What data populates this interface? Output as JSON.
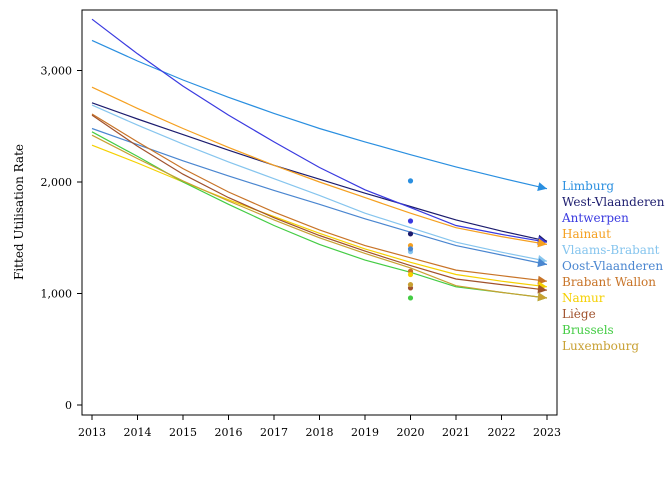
{
  "chart_data": {
    "type": "line",
    "title": "",
    "xlabel": "",
    "ylabel": "Fitted Utilisation Rate",
    "x": [
      2013,
      2014,
      2015,
      2016,
      2017,
      2018,
      2019,
      2020,
      2021,
      2022,
      2023
    ],
    "x_ticks": [
      "2013",
      "2014",
      "2015",
      "2016",
      "2017",
      "2018",
      "2019",
      "2020",
      "2021",
      "2022",
      "2023"
    ],
    "y_ticks": [
      0,
      1000,
      2000,
      3000
    ],
    "y_tick_labels": [
      "0",
      "1,000",
      "2,000",
      "3,000"
    ],
    "xlim": [
      2012.75,
      2023.25
    ],
    "ylim": [
      -100,
      3550
    ],
    "grid": false,
    "legend_placement": "right",
    "series": [
      {
        "name": "Limburg",
        "color": "#2a8fe0",
        "line_x": [
          2013,
          2014,
          2015,
          2016,
          2017,
          2018,
          2019,
          2020,
          2021,
          2022,
          2023
        ],
        "line_y": [
          3270,
          3085,
          2915,
          2760,
          2615,
          2480,
          2360,
          2245,
          2135,
          2035,
          1940
        ],
        "obs_x": 2020,
        "obs_y": 2010
      },
      {
        "name": "West-Vlaanderen",
        "color": "#1c1c6e",
        "line_x": [
          2013,
          2014,
          2015,
          2016,
          2017,
          2018,
          2019,
          2020,
          2021,
          2022,
          2023
        ],
        "line_y": [
          2710,
          2565,
          2425,
          2285,
          2150,
          2025,
          1900,
          1780,
          1660,
          1560,
          1470
        ],
        "obs_x": 2020,
        "obs_y": 1535
      },
      {
        "name": "Antwerpen",
        "color": "#3a3ae0",
        "line_x": [
          2013,
          2014,
          2015,
          2016,
          2017,
          2018,
          2019,
          2020,
          2021,
          2022,
          2023
        ],
        "line_y": [
          3460,
          3150,
          2860,
          2600,
          2360,
          2130,
          1930,
          1770,
          1610,
          1530,
          1460
        ],
        "obs_x": 2020,
        "obs_y": 1650
      },
      {
        "name": "Hainaut",
        "color": "#f5a020",
        "line_x": [
          2013,
          2014,
          2015,
          2016,
          2017,
          2018,
          2019,
          2020,
          2021,
          2022,
          2023
        ],
        "line_y": [
          2850,
          2660,
          2480,
          2310,
          2150,
          2000,
          1860,
          1720,
          1590,
          1510,
          1440
        ],
        "obs_x": 2020,
        "obs_y": 1430
      },
      {
        "name": "Vlaams-Brabant",
        "color": "#86c5ee",
        "line_x": [
          2013,
          2014,
          2015,
          2016,
          2017,
          2018,
          2019,
          2020,
          2021,
          2022,
          2023
        ],
        "line_y": [
          2690,
          2510,
          2340,
          2180,
          2030,
          1880,
          1720,
          1590,
          1460,
          1370,
          1290
        ],
        "obs_x": 2020,
        "obs_y": 1375
      },
      {
        "name": "Oost-Vlaanderen",
        "color": "#4a86d0",
        "line_x": [
          2013,
          2014,
          2015,
          2016,
          2017,
          2018,
          2019,
          2020,
          2021,
          2022,
          2023
        ],
        "line_y": [
          2480,
          2335,
          2190,
          2055,
          1925,
          1800,
          1670,
          1550,
          1430,
          1345,
          1260
        ],
        "obs_x": 2020,
        "obs_y": 1400
      },
      {
        "name": "Brabant Wallon",
        "color": "#c87428",
        "line_x": [
          2013,
          2014,
          2015,
          2016,
          2017,
          2018,
          2019,
          2020,
          2021,
          2022,
          2023
        ],
        "line_y": [
          2610,
          2360,
          2120,
          1910,
          1730,
          1570,
          1430,
          1320,
          1210,
          1160,
          1110
        ],
        "obs_x": 2020,
        "obs_y": 1200
      },
      {
        "name": "Namur",
        "color": "#f5d000",
        "line_x": [
          2013,
          2014,
          2015,
          2016,
          2017,
          2018,
          2019,
          2020,
          2021,
          2022,
          2023
        ],
        "line_y": [
          2330,
          2170,
          2000,
          1840,
          1690,
          1540,
          1400,
          1280,
          1170,
          1110,
          1060
        ],
        "obs_x": 2020,
        "obs_y": 1170
      },
      {
        "name": "Liège",
        "color": "#a0522d",
        "line_x": [
          2013,
          2014,
          2015,
          2016,
          2017,
          2018,
          2019,
          2020,
          2021,
          2022,
          2023
        ],
        "line_y": [
          2600,
          2320,
          2070,
          1860,
          1680,
          1520,
          1380,
          1250,
          1130,
          1080,
          1030
        ],
        "obs_x": 2020,
        "obs_y": 1050
      },
      {
        "name": "Brussels",
        "color": "#44cc44",
        "line_x": [
          2013,
          2014,
          2015,
          2016,
          2017,
          2018,
          2019,
          2020,
          2021,
          2022,
          2023
        ],
        "line_y": [
          2450,
          2230,
          2000,
          1800,
          1610,
          1440,
          1300,
          1190,
          1060,
          1010,
          960
        ],
        "obs_x": 2020,
        "obs_y": 960
      },
      {
        "name": "Luxembourg",
        "color": "#c8a032",
        "line_x": [
          2013,
          2014,
          2015,
          2016,
          2017,
          2018,
          2019,
          2020,
          2021,
          2022,
          2023
        ],
        "line_y": [
          2420,
          2210,
          2010,
          1830,
          1660,
          1500,
          1360,
          1230,
          1070,
          1010,
          960
        ],
        "obs_x": 2020,
        "obs_y": 1080
      }
    ]
  }
}
